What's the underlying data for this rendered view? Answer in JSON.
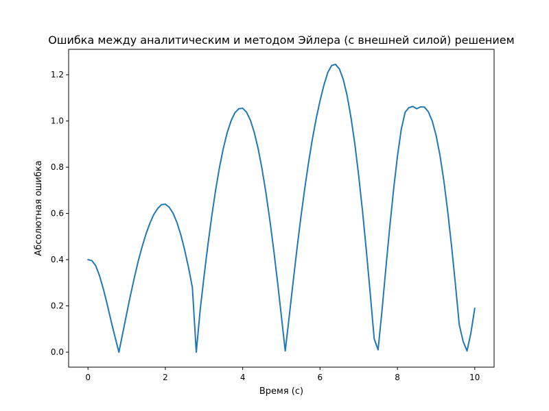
{
  "chart_data": {
    "type": "line",
    "title": "Ошибка между аналитическим и методом Эйлера (с внешней силой) решением",
    "xlabel": "Время (с)",
    "ylabel": "Абсолютная ошибка",
    "xlim": [
      -0.5,
      10.5
    ],
    "ylim": [
      -0.065,
      1.31
    ],
    "xticks": [
      0,
      2,
      4,
      6,
      8,
      10
    ],
    "xtick_labels": [
      "0",
      "2",
      "4",
      "6",
      "8",
      "10"
    ],
    "yticks": [
      0.0,
      0.2,
      0.4,
      0.6,
      0.8,
      1.0,
      1.2
    ],
    "ytick_labels": [
      "0.0",
      "0.2",
      "0.4",
      "0.6",
      "0.8",
      "1.0",
      "1.2"
    ],
    "grid": false,
    "series": [
      {
        "color": "#1f77b4",
        "x": [
          0.0,
          0.1,
          0.2,
          0.3,
          0.4,
          0.5,
          0.6,
          0.7,
          0.8,
          0.9,
          1.0,
          1.1,
          1.2,
          1.3,
          1.4,
          1.5,
          1.6,
          1.7,
          1.8,
          1.9,
          2.0,
          2.1,
          2.2,
          2.3,
          2.4,
          2.5,
          2.6,
          2.7,
          2.8,
          2.9,
          3.0,
          3.1,
          3.2,
          3.3,
          3.4,
          3.5,
          3.6,
          3.7,
          3.8,
          3.9,
          4.0,
          4.1,
          4.2,
          4.3,
          4.4,
          4.5,
          4.6,
          4.7,
          4.8,
          4.9,
          5.0,
          5.1,
          5.2,
          5.3,
          5.4,
          5.5,
          5.6,
          5.7,
          5.8,
          5.9,
          6.0,
          6.1,
          6.2,
          6.3,
          6.4,
          6.5,
          6.6,
          6.7,
          6.8,
          6.9,
          7.0,
          7.1,
          7.2,
          7.3,
          7.4,
          7.5,
          7.6,
          7.7,
          7.8,
          7.9,
          8.0,
          8.1,
          8.2,
          8.3,
          8.4,
          8.5,
          8.6,
          8.7,
          8.8,
          8.9,
          9.0,
          9.1,
          9.2,
          9.3,
          9.4,
          9.5,
          9.6,
          9.7,
          9.8,
          9.9,
          10.0
        ],
        "y": [
          0.4,
          0.396,
          0.374,
          0.33,
          0.272,
          0.205,
          0.133,
          0.065,
          0.0,
          0.083,
          0.166,
          0.247,
          0.323,
          0.394,
          0.456,
          0.511,
          0.557,
          0.595,
          0.621,
          0.638,
          0.64,
          0.627,
          0.601,
          0.561,
          0.508,
          0.442,
          0.366,
          0.279,
          0.0,
          0.181,
          0.327,
          0.463,
          0.588,
          0.701,
          0.799,
          0.882,
          0.95,
          1.001,
          1.036,
          1.053,
          1.055,
          1.038,
          1.003,
          0.95,
          0.88,
          0.793,
          0.69,
          0.574,
          0.445,
          0.305,
          0.156,
          0.005,
          0.15,
          0.298,
          0.442,
          0.578,
          0.703,
          0.817,
          0.92,
          1.01,
          1.088,
          1.155,
          1.21,
          1.24,
          1.245,
          1.225,
          1.18,
          1.11,
          1.015,
          0.9,
          0.762,
          0.607,
          0.434,
          0.249,
          0.058,
          0.01,
          0.177,
          0.36,
          0.537,
          0.701,
          0.846,
          0.964,
          1.038,
          1.058,
          1.063,
          1.053,
          1.061,
          1.06,
          1.04,
          1.0,
          0.938,
          0.852,
          0.742,
          0.61,
          0.459,
          0.293,
          0.118,
          0.046,
          0.005,
          0.083,
          0.19
        ]
      }
    ]
  }
}
